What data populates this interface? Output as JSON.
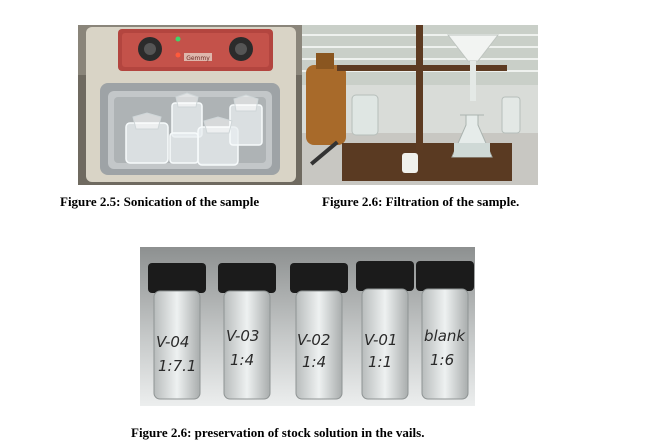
{
  "figures": [
    {
      "caption": "Figure 2.5: Sonication of the sample",
      "photo": "ultrasonic-bath-with-glass-beakers"
    },
    {
      "caption": "Figure 2.6: Filtration of the sample.",
      "photo": "filtration-stand-with-funnel-and-flask"
    },
    {
      "caption": "Figure 2.6: preservation of stock solution in the vails.",
      "photo": "five-capped-glass-vials"
    }
  ],
  "panel_text": {
    "bath_brand": "Gemmy"
  },
  "vials": [
    {
      "label": "V-04",
      "sub": "1:7.1"
    },
    {
      "label": "V-03",
      "sub": "1:4"
    },
    {
      "label": "V-02",
      "sub": "1:4"
    },
    {
      "label": "V-01",
      "sub": "1:1"
    },
    {
      "label": "blank",
      "sub": "1:6"
    }
  ]
}
